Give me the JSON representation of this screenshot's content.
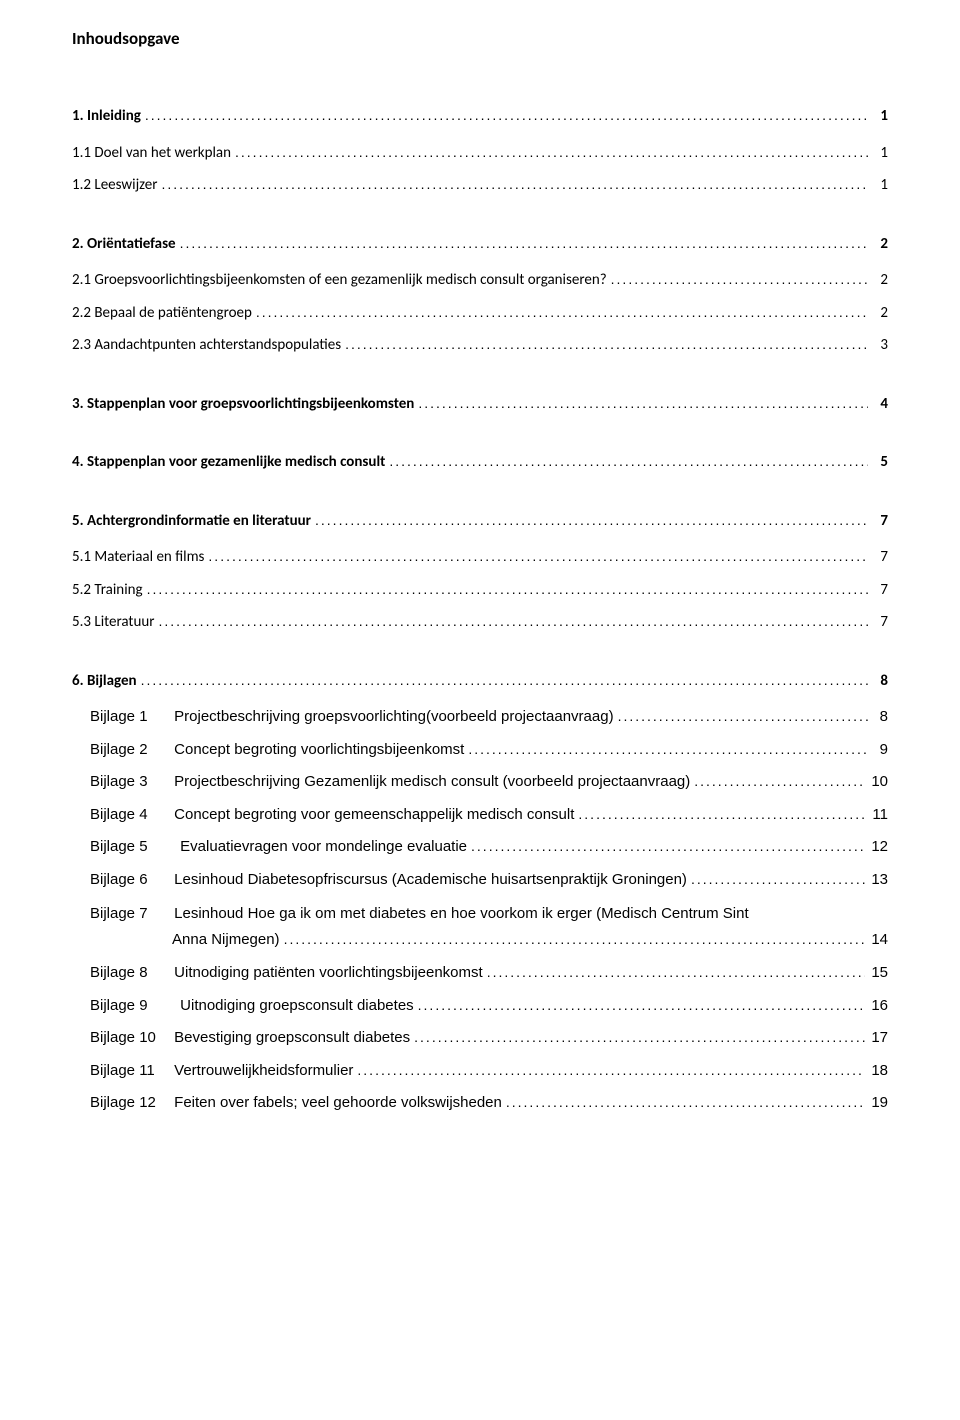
{
  "title": "Inhoudsopgave",
  "entries": [
    {
      "label": "1. Inleiding",
      "page": "1",
      "bold": true,
      "serif": true,
      "spacer": "none"
    },
    {
      "label": "1.1 Doel van het werkplan",
      "page": "1",
      "bold": false,
      "serif": true,
      "spacer": "short"
    },
    {
      "label": "1.2 Leeswijzer",
      "page": "1",
      "bold": false,
      "serif": true,
      "spacer": "none"
    },
    {
      "label": "2. Oriëntatiefase",
      "page": "2",
      "bold": true,
      "serif": true,
      "spacer": "above"
    },
    {
      "label": "2.1 Groepsvoorlichtingsbijeenkomsten of een gezamenlijk medisch consult organiseren?",
      "page": "2",
      "bold": false,
      "serif": true,
      "spacer": "short"
    },
    {
      "label": "2.2 Bepaal de patiëntengroep",
      "page": "2",
      "bold": false,
      "serif": true,
      "spacer": "none"
    },
    {
      "label": "2.3 Aandachtpunten achterstandspopulaties",
      "page": "3",
      "bold": false,
      "serif": true,
      "spacer": "none"
    },
    {
      "label": "3. Stappenplan voor groepsvoorlichtingsbijeenkomsten",
      "page": "4",
      "bold": true,
      "serif": true,
      "spacer": "above"
    },
    {
      "label": "4. Stappenplan voor gezamenlijke medisch consult",
      "page": "5",
      "bold": true,
      "serif": true,
      "spacer": "above"
    },
    {
      "label": "5. Achtergrondinformatie en literatuur",
      "page": "7",
      "bold": true,
      "serif": true,
      "spacer": "above"
    },
    {
      "label": "5.1 Materiaal en films",
      "page": "7",
      "bold": false,
      "serif": true,
      "spacer": "short"
    },
    {
      "label": "5.2 Training",
      "page": "7",
      "bold": false,
      "serif": true,
      "spacer": "none"
    },
    {
      "label": "5.3 Literatuur",
      "page": "7",
      "bold": false,
      "serif": true,
      "spacer": "none"
    },
    {
      "label": "6. Bijlagen",
      "page": "8",
      "bold": true,
      "serif": true,
      "spacer": "above"
    },
    {
      "prefix": "Bijlage 1",
      "label": "Projectbeschrijving groepsvoorlichting(voorbeeld projectaanvraag)",
      "page": "8",
      "bold": false,
      "serif": false,
      "spacer": "short",
      "indent": true
    },
    {
      "prefix": "Bijlage 2",
      "label": "Concept begroting voorlichtingsbijeenkomst",
      "page": "9",
      "bold": false,
      "serif": false,
      "spacer": "none",
      "indent": true
    },
    {
      "prefix": "Bijlage 3",
      "label": "Projectbeschrijving Gezamenlijk medisch consult (voorbeeld projectaanvraag)",
      "page": "10",
      "bold": false,
      "serif": false,
      "spacer": "none",
      "indent": true
    },
    {
      "prefix": "Bijlage 4",
      "label": "Concept begroting voor gemeenschappelijk medisch consult",
      "page": "11",
      "bold": false,
      "serif": false,
      "spacer": "none",
      "indent": true
    },
    {
      "prefix": "Bijlage 5",
      "label": "Evaluatievragen voor mondelinge evaluatie",
      "page": "12",
      "bold": false,
      "serif": false,
      "spacer": "none",
      "indent": true,
      "prefixPad": true
    },
    {
      "prefix": "Bijlage 6",
      "label": "Lesinhoud Diabetesopfriscursus (Academische huisartsenpraktijk Groningen)",
      "page": "13",
      "bold": false,
      "serif": false,
      "spacer": "none",
      "indent": true
    },
    {
      "prefix": "Bijlage 7",
      "label1": "Lesinhoud Hoe ga ik om met diabetes en hoe voorkom ik erger (Medisch Centrum Sint",
      "label2": "Anna Nijmegen)",
      "page": "14",
      "bold": false,
      "serif": false,
      "spacer": "none",
      "indent": true,
      "wrap": true
    },
    {
      "prefix": "Bijlage 8",
      "label": "Uitnodiging patiënten voorlichtingsbijeenkomst",
      "page": "15",
      "bold": false,
      "serif": false,
      "spacer": "none",
      "indent": true
    },
    {
      "prefix": "Bijlage 9",
      "label": "Uitnodiging groepsconsult diabetes",
      "page": "16",
      "bold": false,
      "serif": false,
      "spacer": "none",
      "indent": true,
      "prefixPad": true
    },
    {
      "prefix": "Bijlage 10",
      "label": "Bevestiging groepsconsult diabetes",
      "page": "17",
      "bold": false,
      "serif": false,
      "spacer": "none",
      "indent": true
    },
    {
      "prefix": "Bijlage 11",
      "label": "Vertrouwelijkheidsformulier",
      "page": "18",
      "bold": false,
      "serif": false,
      "spacer": "none",
      "indent": true
    },
    {
      "prefix": "Bijlage 12",
      "label": "Feiten over fabels; veel gehoorde volkswijsheden",
      "page": "19",
      "bold": false,
      "serif": false,
      "spacer": "none",
      "indent": true
    }
  ]
}
